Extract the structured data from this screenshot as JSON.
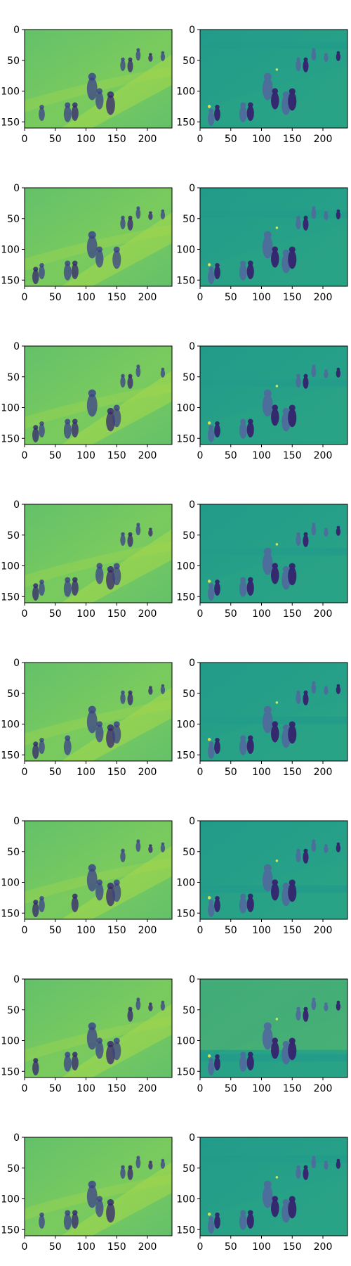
{
  "figure": {
    "rows": 8,
    "cols": 2,
    "x_tick_labels": [
      "0",
      "50",
      "100",
      "150",
      "200"
    ],
    "y_tick_labels": [
      "0",
      "50",
      "100",
      "150"
    ],
    "image_width_units": 240,
    "image_height_units": 160,
    "colormap": "viridis",
    "colors": {
      "left_background": "#7ACB5E",
      "left_top_band": "#64C06A",
      "left_bright_band": "#A6D84A",
      "right_background": "#229C8A",
      "right_ground": "#2AA386",
      "figure_dark": "#3B3F89",
      "figure_deep": "#35236E",
      "figure_mid": "#4E6B9C",
      "highlight": "#D8E44A"
    }
  }
}
